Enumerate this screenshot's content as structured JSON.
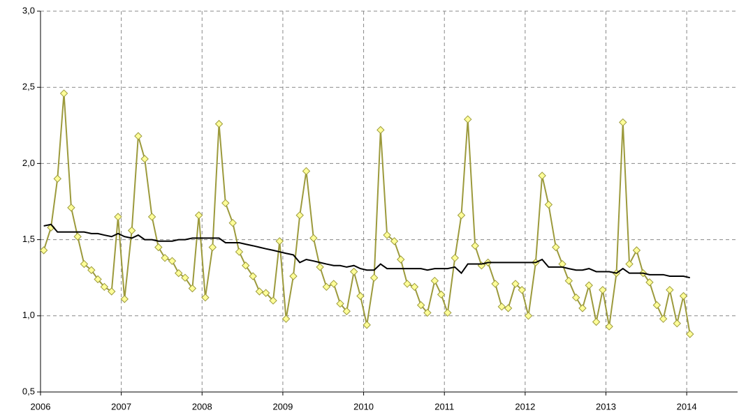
{
  "chart_data": {
    "type": "line",
    "x": [
      2006.04,
      2006.13,
      2006.21,
      2006.29,
      2006.38,
      2006.46,
      2006.54,
      2006.63,
      2006.71,
      2006.79,
      2006.88,
      2006.96,
      2007.04,
      2007.13,
      2007.21,
      2007.29,
      2007.38,
      2007.46,
      2007.54,
      2007.63,
      2007.71,
      2007.79,
      2007.88,
      2007.96,
      2008.04,
      2008.13,
      2008.21,
      2008.29,
      2008.38,
      2008.46,
      2008.54,
      2008.63,
      2008.71,
      2008.79,
      2008.88,
      2008.96,
      2009.04,
      2009.13,
      2009.21,
      2009.29,
      2009.38,
      2009.46,
      2009.54,
      2009.63,
      2009.71,
      2009.79,
      2009.88,
      2009.96,
      2010.04,
      2010.13,
      2010.21,
      2010.29,
      2010.38,
      2010.46,
      2010.54,
      2010.63,
      2010.71,
      2010.79,
      2010.88,
      2010.96,
      2011.04,
      2011.13,
      2011.21,
      2011.29,
      2011.38,
      2011.46,
      2011.54,
      2011.63,
      2011.71,
      2011.79,
      2011.88,
      2011.96,
      2012.04,
      2012.13,
      2012.21,
      2012.29,
      2012.38,
      2012.46,
      2012.54,
      2012.63,
      2012.71,
      2012.79,
      2012.88,
      2012.96,
      2013.04,
      2013.13,
      2013.21,
      2013.29,
      2013.38,
      2013.46,
      2013.54,
      2013.63,
      2013.71,
      2013.79,
      2013.88,
      2013.96,
      2014.04
    ],
    "series": [
      {
        "color": "#9c9a3c",
        "marker_fill": "#ffff99",
        "marker": "diamond",
        "values": [
          1.43,
          1.58,
          1.9,
          2.46,
          1.71,
          1.52,
          1.34,
          1.3,
          1.24,
          1.19,
          1.16,
          1.65,
          1.11,
          1.56,
          2.18,
          2.03,
          1.65,
          1.45,
          1.38,
          1.36,
          1.28,
          1.25,
          1.18,
          1.66,
          1.12,
          1.45,
          2.26,
          1.74,
          1.61,
          1.42,
          1.33,
          1.26,
          1.16,
          1.15,
          1.1,
          1.49,
          0.98,
          1.26,
          1.66,
          1.95,
          1.51,
          1.32,
          1.19,
          1.21,
          1.08,
          1.03,
          1.29,
          1.13,
          0.94,
          1.25,
          2.22,
          1.53,
          1.49,
          1.37,
          1.21,
          1.19,
          1.07,
          1.02,
          1.23,
          1.14,
          1.02,
          1.38,
          1.66,
          2.29,
          1.46,
          1.33,
          1.35,
          1.21,
          1.06,
          1.05,
          1.21,
          1.17,
          1.0,
          1.35,
          1.92,
          1.73,
          1.45,
          1.34,
          1.23,
          1.12,
          1.05,
          1.2,
          0.96,
          1.17,
          0.93,
          1.28,
          2.27,
          1.34,
          1.43,
          1.28,
          1.22,
          1.07,
          0.98,
          1.17,
          0.95,
          1.13,
          0.88
        ]
      },
      {
        "color": "#000000",
        "values": [
          1.59,
          1.6,
          1.55,
          1.55,
          1.55,
          1.55,
          1.55,
          1.54,
          1.54,
          1.53,
          1.52,
          1.54,
          1.52,
          1.51,
          1.53,
          1.5,
          1.5,
          1.49,
          1.49,
          1.49,
          1.5,
          1.5,
          1.51,
          1.51,
          1.51,
          1.51,
          1.51,
          1.48,
          1.48,
          1.48,
          1.47,
          1.46,
          1.45,
          1.44,
          1.43,
          1.42,
          1.41,
          1.4,
          1.35,
          1.37,
          1.36,
          1.35,
          1.34,
          1.33,
          1.33,
          1.32,
          1.33,
          1.31,
          1.3,
          1.3,
          1.34,
          1.31,
          1.31,
          1.31,
          1.31,
          1.31,
          1.31,
          1.3,
          1.31,
          1.31,
          1.31,
          1.32,
          1.28,
          1.34,
          1.34,
          1.34,
          1.35,
          1.35,
          1.35,
          1.35,
          1.35,
          1.35,
          1.35,
          1.35,
          1.37,
          1.32,
          1.32,
          1.32,
          1.31,
          1.3,
          1.3,
          1.31,
          1.29,
          1.29,
          1.29,
          1.28,
          1.31,
          1.28,
          1.28,
          1.28,
          1.27,
          1.27,
          1.27,
          1.26,
          1.26,
          1.26,
          1.25
        ]
      }
    ],
    "xlim": [
      2006,
      2014.63
    ],
    "xticks": [
      2006,
      2007,
      2008,
      2009,
      2010,
      2011,
      2012,
      2013,
      2014
    ],
    "ylim": [
      0.5,
      3.0
    ],
    "yticks": [
      {
        "value": 0.5,
        "label": "0,5"
      },
      {
        "value": 1.0,
        "label": "1,0"
      },
      {
        "value": 1.5,
        "label": "1,5"
      },
      {
        "value": 2.0,
        "label": "2,0"
      },
      {
        "value": 2.5,
        "label": "2,5"
      },
      {
        "value": 3.0,
        "label": "3,0"
      }
    ],
    "grid": true
  }
}
